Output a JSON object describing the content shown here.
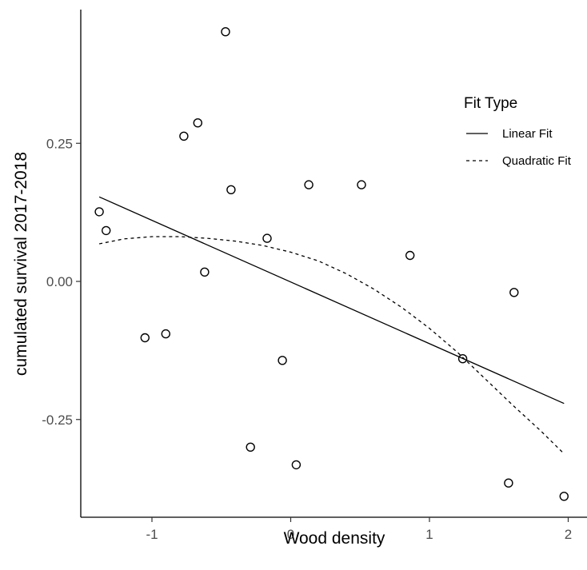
{
  "chart_data": {
    "type": "scatter",
    "xlabel": "Wood density",
    "ylabel": "cumulated survival 2017-2018",
    "xlim": [
      -1.55,
      2.14
    ],
    "ylim": [
      -0.43,
      0.49
    ],
    "x_ticks": [
      -1,
      0,
      1,
      2
    ],
    "x_tick_labels": [
      "-1",
      "0",
      "1",
      "2"
    ],
    "y_ticks": [
      -0.25,
      0.0,
      0.25
    ],
    "y_tick_labels": [
      "-0.25",
      "0.00",
      "0.25"
    ],
    "grid": false,
    "points": {
      "x": [
        -1.38,
        -1.33,
        -1.05,
        -0.9,
        -0.77,
        -0.67,
        -0.62,
        -0.47,
        -0.43,
        -0.29,
        -0.17,
        -0.06,
        0.04,
        0.13,
        0.51,
        0.86,
        1.24,
        1.57,
        1.61,
        1.97
      ],
      "y": [
        0.126,
        0.092,
        -0.102,
        -0.095,
        0.263,
        0.287,
        0.017,
        0.452,
        0.166,
        -0.3,
        0.078,
        -0.143,
        -0.332,
        0.175,
        0.175,
        0.047,
        -0.14,
        -0.365,
        -0.02,
        -0.389
      ]
    },
    "legend": {
      "title": "Fit Type",
      "position": "right",
      "entries": [
        {
          "label": "Linear Fit",
          "line_style": "solid"
        },
        {
          "label": "Quadratic Fit",
          "line_style": "dashed"
        }
      ]
    },
    "series": [
      {
        "name": "Linear Fit",
        "line_style": "solid",
        "x": [
          -1.38,
          1.97
        ],
        "y": [
          0.153,
          -0.221
        ]
      },
      {
        "name": "Quadratic Fit",
        "line_style": "dashed",
        "x": [
          -1.38,
          -1.2,
          -1.0,
          -0.8,
          -0.6,
          -0.4,
          -0.2,
          0.0,
          0.2,
          0.4,
          0.6,
          0.8,
          1.0,
          1.2,
          1.4,
          1.6,
          1.8,
          1.97
        ],
        "y": [
          0.068,
          0.077,
          0.081,
          0.081,
          0.078,
          0.073,
          0.065,
          0.053,
          0.037,
          0.014,
          -0.014,
          -0.047,
          -0.085,
          -0.128,
          -0.176,
          -0.224,
          -0.27,
          -0.312
        ]
      }
    ],
    "colors": {
      "axis": "#000000",
      "tick_label": "#4d4d4d",
      "marker_stroke": "#000000",
      "line": "#000000"
    }
  }
}
